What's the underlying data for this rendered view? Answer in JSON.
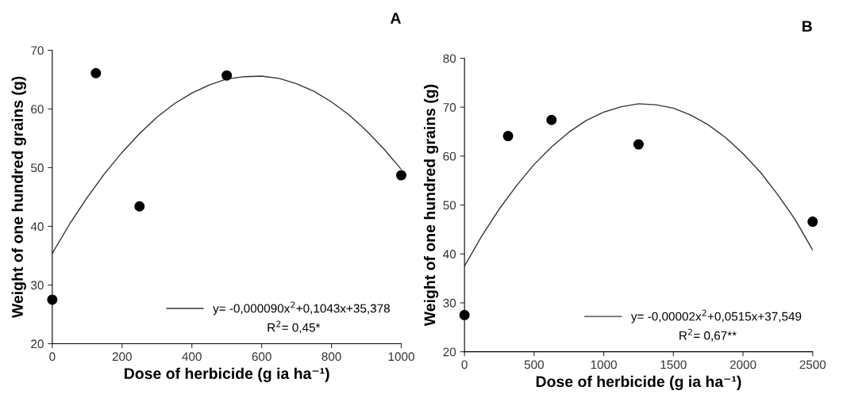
{
  "chart_data": [
    {
      "type": "scatter",
      "title": "A",
      "xlabel": "Dose of herbicide (g ia ha⁻¹)",
      "ylabel": "Weight of one hundred grains (g)",
      "xlim": [
        0,
        1000
      ],
      "xticks": [
        0,
        200,
        400,
        600,
        800,
        1000
      ],
      "ylim": [
        20,
        70
      ],
      "yticks": [
        20,
        30,
        40,
        50,
        60,
        70
      ],
      "grid": false,
      "legend": "bottom right",
      "marker": "circle",
      "series": [
        {
          "color": "#000000",
          "x": [
            0,
            125,
            250,
            500,
            1000
          ],
          "values": [
            27.5,
            66.1,
            43.4,
            65.7,
            48.7
          ]
        },
        {
          "type": "line",
          "name": "y= -0,000090x$^{2}$+0,1043x+35,378",
          "color": "#333333",
          "marker": "none",
          "line_style": "solid",
          "x": [
            0,
            50,
            100,
            150,
            200,
            250,
            300,
            350,
            400,
            450,
            500,
            550,
            600,
            650,
            700,
            750,
            800,
            850,
            900,
            950,
            1000
          ],
          "values": [
            35.4,
            40.4,
            44.9,
            49.0,
            52.6,
            55.8,
            58.6,
            60.9,
            62.7,
            64.1,
            65.1,
            65.5,
            65.6,
            65.2,
            64.3,
            63.0,
            61.2,
            59.0,
            56.3,
            53.2,
            49.7
          ]
        }
      ],
      "annotations": [
        "R$^{2}$= 0,45*"
      ]
    },
    {
      "type": "scatter",
      "title": "B",
      "xlabel": "Dose of herbicide (g ia ha⁻¹)",
      "ylabel": "Weight of one hundred grains (g)",
      "xlim": [
        0,
        2500
      ],
      "xticks": [
        0,
        500,
        1000,
        1500,
        2000,
        2500
      ],
      "ylim": [
        20,
        80
      ],
      "yticks": [
        20,
        30,
        40,
        50,
        60,
        70,
        80
      ],
      "grid": false,
      "legend": "bottom right",
      "marker": "circle",
      "series": [
        {
          "color": "#000000",
          "x": [
            0,
            313,
            625,
            1250,
            2500
          ],
          "values": [
            27.5,
            64.1,
            67.4,
            62.4,
            46.6
          ]
        },
        {
          "type": "line",
          "name": "y= -0,00002x$^{2}$+0,0515x+37,549",
          "color": "#333333",
          "marker": "none",
          "line_style": "solid",
          "x": [
            0,
            125,
            250,
            375,
            500,
            625,
            750,
            875,
            1000,
            1125,
            1250,
            1375,
            1500,
            1625,
            1750,
            1875,
            2000,
            2125,
            2250,
            2375,
            2500
          ],
          "values": [
            37.5,
            43.7,
            49.2,
            54.0,
            58.3,
            61.9,
            64.9,
            67.3,
            69.0,
            70.1,
            70.7,
            70.5,
            69.8,
            68.4,
            66.4,
            63.8,
            60.5,
            56.7,
            52.1,
            47.0,
            40.8
          ]
        }
      ],
      "annotations": [
        "R$^{2}$= 0,67**"
      ]
    }
  ]
}
